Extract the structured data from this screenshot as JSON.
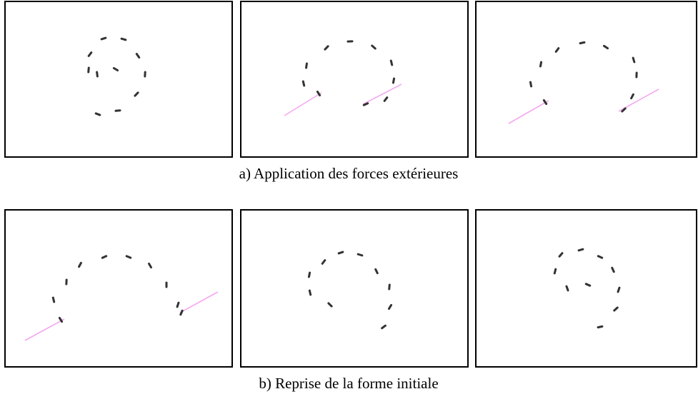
{
  "captions": [
    "a) Application des forces extérieures",
    "b) Reprise de la forme initiale"
  ]
}
